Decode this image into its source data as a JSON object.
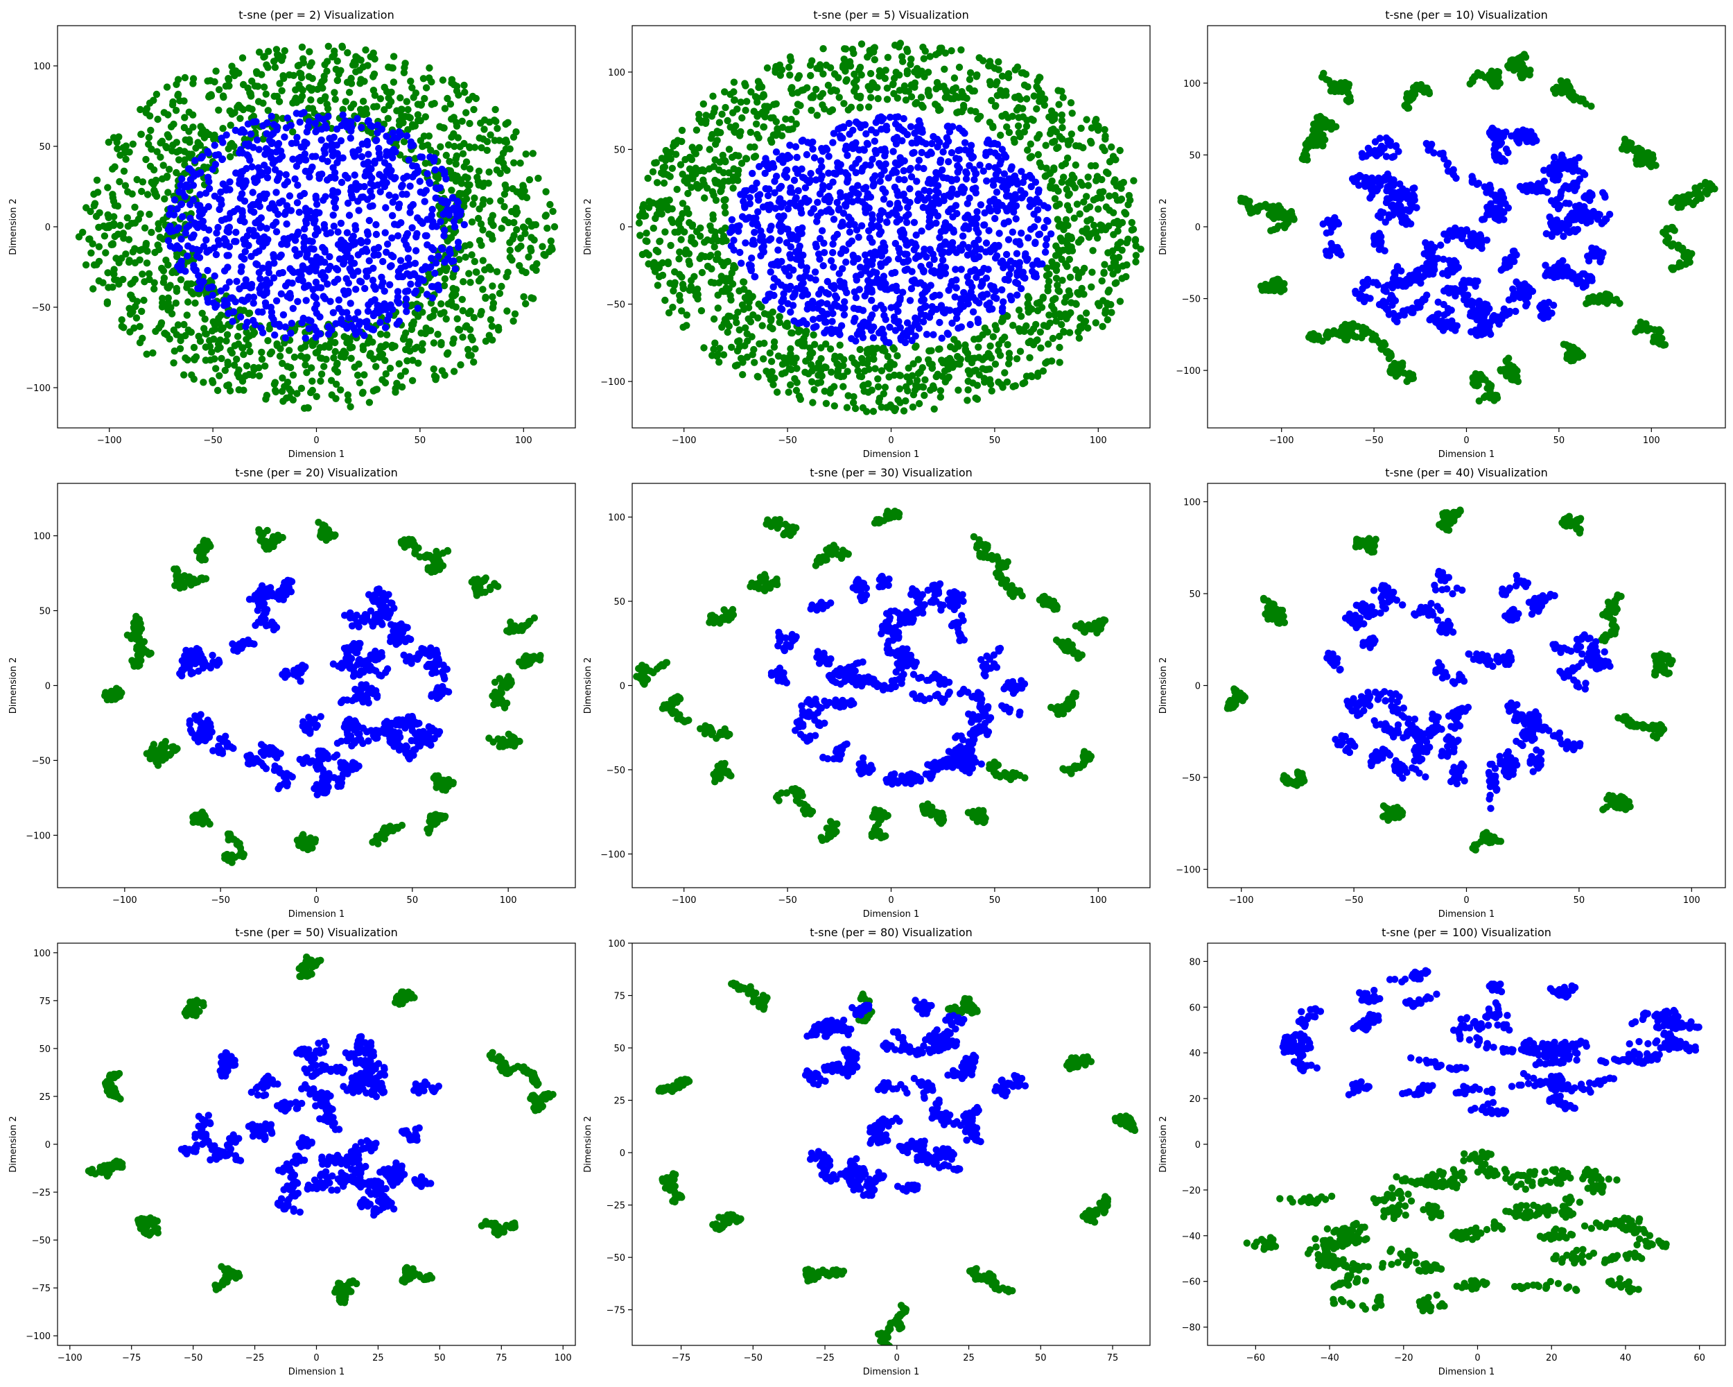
{
  "colors": {
    "inner": "#0000ff",
    "outer": "#008000",
    "axis": "#000000",
    "background": "#ffffff"
  },
  "chart_data": [
    {
      "type": "scatter",
      "title": "t-sne (per = 2) Visualization",
      "xlabel": "Dimension 1",
      "ylabel": "Dimension 2",
      "xlim": [
        -125,
        125
      ],
      "ylim": [
        -125,
        125
      ],
      "xticks": [
        -100,
        -50,
        0,
        50,
        100
      ],
      "yticks": [
        -100,
        -50,
        0,
        50,
        100
      ],
      "grid": false,
      "pattern": "dense-ring",
      "series": [
        {
          "color": "#0000ff",
          "role": "inner",
          "center": [
            0,
            0
          ],
          "radius": [
            72,
            72
          ],
          "shape": "filled-disc",
          "point_count": 1000
        },
        {
          "color": "#008000",
          "role": "outer",
          "center": [
            0,
            0
          ],
          "inner_radius": [
            60,
            60
          ],
          "outer_radius": [
            115,
            113
          ],
          "shape": "ring",
          "point_count": 1400
        }
      ]
    },
    {
      "type": "scatter",
      "title": "t-sne (per = 5) Visualization",
      "xlabel": "Dimension 1",
      "ylabel": "Dimension 2",
      "xlim": [
        -125,
        125
      ],
      "ylim": [
        -130,
        130
      ],
      "xticks": [
        -100,
        -50,
        0,
        50,
        100
      ],
      "yticks": [
        -100,
        -50,
        0,
        50,
        100
      ],
      "grid": false,
      "pattern": "dense-ring",
      "series": [
        {
          "color": "#0000ff",
          "role": "inner",
          "center": [
            0,
            -2
          ],
          "radius": [
            78,
            74
          ],
          "shape": "filled-disc",
          "point_count": 1200
        },
        {
          "color": "#008000",
          "role": "outer",
          "center": [
            0,
            0
          ],
          "inner_radius": [
            80,
            78
          ],
          "outer_radius": [
            122,
            120
          ],
          "shape": "ring",
          "point_count": 1400
        }
      ]
    },
    {
      "type": "scatter",
      "title": "t-sne (per = 10) Visualization",
      "xlabel": "Dimension 1",
      "ylabel": "Dimension 2",
      "xlim": [
        -140,
        140
      ],
      "ylim": [
        -140,
        140
      ],
      "xticks": [
        -100,
        -50,
        0,
        50,
        100
      ],
      "yticks": [
        -100,
        -50,
        0,
        50,
        100
      ],
      "grid": false,
      "pattern": "wormy-ring",
      "series": [
        {
          "color": "#0000ff",
          "role": "inner",
          "center": [
            0,
            0
          ],
          "radius": [
            78,
            78
          ],
          "shape": "filled-disc",
          "point_count": 1100
        },
        {
          "color": "#008000",
          "role": "outer",
          "center": [
            0,
            0
          ],
          "inner_radius": [
            85,
            85
          ],
          "outer_radius": [
            128,
            125
          ],
          "shape": "ring",
          "point_count": 900
        }
      ]
    },
    {
      "type": "scatter",
      "title": "t-sne (per = 20) Visualization",
      "xlabel": "Dimension 1",
      "ylabel": "Dimension 2",
      "xlim": [
        -135,
        135
      ],
      "ylim": [
        -135,
        135
      ],
      "xticks": [
        -100,
        -50,
        0,
        50,
        100
      ],
      "yticks": [
        -100,
        -50,
        0,
        50,
        100
      ],
      "grid": false,
      "pattern": "wormy-ring",
      "series": [
        {
          "color": "#0000ff",
          "role": "inner",
          "center": [
            0,
            0
          ],
          "radius": [
            72,
            74
          ],
          "shape": "filled-disc",
          "point_count": 900
        },
        {
          "color": "#008000",
          "role": "outer",
          "center": [
            0,
            0
          ],
          "inner_radius": [
            85,
            85
          ],
          "outer_radius": [
            125,
            120
          ],
          "shape": "ring",
          "point_count": 700
        }
      ]
    },
    {
      "type": "scatter",
      "title": "t-sne (per = 30) Visualization",
      "xlabel": "Dimension 1",
      "ylabel": "Dimension 2",
      "xlim": [
        -125,
        125
      ],
      "ylim": [
        -120,
        120
      ],
      "xticks": [
        -100,
        -50,
        0,
        50,
        100
      ],
      "yticks": [
        -100,
        -50,
        0,
        50,
        100
      ],
      "grid": false,
      "pattern": "wormy-ring",
      "series": [
        {
          "color": "#0000ff",
          "role": "inner",
          "center": [
            0,
            0
          ],
          "radius": [
            65,
            65
          ],
          "shape": "filled-disc",
          "point_count": 800
        },
        {
          "color": "#008000",
          "role": "outer",
          "center": [
            0,
            0
          ],
          "inner_radius": [
            75,
            75
          ],
          "outer_radius": [
            115,
            110
          ],
          "shape": "ring",
          "point_count": 650
        }
      ]
    },
    {
      "type": "scatter",
      "title": "t-sne (per = 40) Visualization",
      "xlabel": "Dimension 1",
      "ylabel": "Dimension 2",
      "xlim": [
        -115,
        115
      ],
      "ylim": [
        -110,
        110
      ],
      "xticks": [
        -100,
        -50,
        0,
        50,
        100
      ],
      "yticks": [
        -100,
        -50,
        0,
        50,
        100
      ],
      "grid": false,
      "pattern": "clusters",
      "series": [
        {
          "color": "#0000ff",
          "role": "inner",
          "center": [
            0,
            0
          ],
          "radius": [
            65,
            68
          ],
          "shape": "filled-disc",
          "point_count": 800
        },
        {
          "color": "#008000",
          "role": "outer",
          "center": [
            0,
            0
          ],
          "inner_radius": [
            75,
            75
          ],
          "outer_radius": [
            110,
            105
          ],
          "shape": "ring",
          "point_count": 600
        }
      ]
    },
    {
      "type": "scatter",
      "title": "t-sne (per = 50) Visualization",
      "xlabel": "Dimension 1",
      "ylabel": "Dimension 2",
      "xlim": [
        -105,
        105
      ],
      "ylim": [
        -105,
        105
      ],
      "xticks": [
        -100,
        -75,
        -50,
        -25,
        0,
        25,
        50,
        75,
        100
      ],
      "yticks": [
        -100,
        -75,
        -50,
        -25,
        0,
        25,
        50,
        75,
        100
      ],
      "grid": false,
      "pattern": "clusters",
      "series": [
        {
          "color": "#0000ff",
          "role": "inner",
          "center": [
            0,
            8
          ],
          "radius": [
            58,
            52
          ],
          "shape": "filled-disc",
          "point_count": 800
        },
        {
          "color": "#008000",
          "role": "outer",
          "center": [
            0,
            0
          ],
          "inner_radius": [
            68,
            68
          ],
          "outer_radius": [
            98,
            96
          ],
          "shape": "ring",
          "point_count": 600
        }
      ]
    },
    {
      "type": "scatter",
      "title": "t-sne (per = 80) Visualization",
      "xlabel": "Dimension 1",
      "ylabel": "Dimension 2",
      "xlim": [
        -92,
        88
      ],
      "ylim": [
        -92,
        100
      ],
      "xticks": [
        -75,
        -50,
        -25,
        0,
        25,
        50,
        75
      ],
      "yticks": [
        -75,
        -50,
        -25,
        0,
        25,
        50,
        75,
        100
      ],
      "grid": false,
      "pattern": "clusters",
      "series": [
        {
          "color": "#0000ff",
          "role": "inner",
          "center": [
            2,
            25
          ],
          "radius": [
            45,
            48
          ],
          "shape": "filled-disc",
          "point_count": 700
        },
        {
          "color": "#008000",
          "role": "outer",
          "center": [
            0,
            0
          ],
          "inner_radius": [
            60,
            60
          ],
          "outer_radius": [
            88,
            88
          ],
          "shape": "ring",
          "point_count": 600
        }
      ]
    },
    {
      "type": "scatter",
      "title": "t-sne (per = 100) Visualization",
      "xlabel": "Dimension 1",
      "ylabel": "Dimension 2",
      "xlim": [
        -73,
        67
      ],
      "ylim": [
        -88,
        88
      ],
      "xticks": [
        -60,
        -40,
        -20,
        0,
        20,
        40,
        60
      ],
      "yticks": [
        -80,
        -60,
        -40,
        -20,
        0,
        20,
        40,
        60,
        80
      ],
      "grid": false,
      "pattern": "split",
      "series": [
        {
          "color": "#0000ff",
          "role": "inner",
          "center": [
            5,
            45
          ],
          "radius": [
            58,
            33
          ],
          "shape": "filled-disc",
          "point_count": 700
        },
        {
          "color": "#008000",
          "role": "outer",
          "center": [
            -5,
            -40
          ],
          "radius": [
            65,
            37
          ],
          "shape": "filled-disc",
          "point_count": 700
        }
      ]
    }
  ]
}
